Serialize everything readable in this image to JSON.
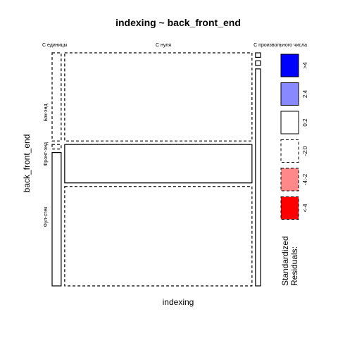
{
  "chart_data": {
    "type": "mosaic",
    "title": "indexing ~ back_front_end",
    "xlabel": "indexing",
    "ylabel": "back_front_end",
    "x_categories": [
      "С единицы",
      "С нуля",
      "С произвольного числа"
    ],
    "y_categories": [
      "Бэк-энд",
      "Фронт-энд",
      "Фул-стек"
    ],
    "x_proportions": [
      0.045,
      0.93,
      0.025
    ],
    "y_proportions_within_x": [
      [
        0.39,
        0.02,
        0.59
      ],
      [
        0.39,
        0.17,
        0.44
      ],
      [
        0.02,
        0.02,
        0.96
      ]
    ],
    "residual_bins": [
      {
        "label": ">4",
        "color": "#0000ff",
        "outline": "solid"
      },
      {
        "label": "2:4",
        "color": "#8888ff",
        "outline": "solid"
      },
      {
        "label": "0:2",
        "color": "#ffffff",
        "outline": "solid"
      },
      {
        "label": "-2:0",
        "color": "#ffffff",
        "outline": "dashed"
      },
      {
        "label": "-4:-2",
        "color": "#ff8888",
        "outline": "dashed"
      },
      {
        "label": "<-4",
        "color": "#ff0000",
        "outline": "dashed"
      }
    ],
    "cell_bins": [
      [
        3,
        3,
        2
      ],
      [
        3,
        2,
        3
      ],
      [
        2,
        2,
        2
      ]
    ],
    "legend_title_line1": "Standardized",
    "legend_title_line2": "Residuals:"
  }
}
